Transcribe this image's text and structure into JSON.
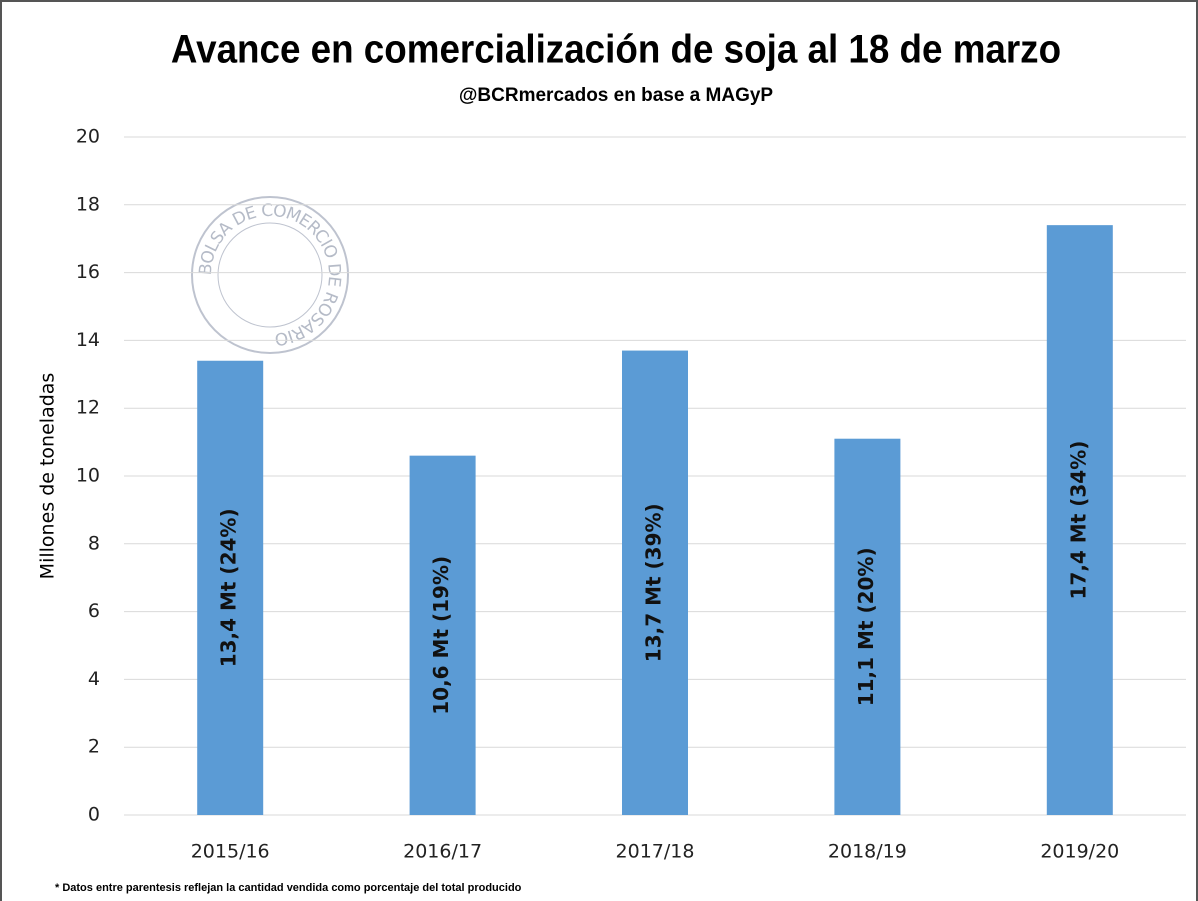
{
  "chart_data": {
    "type": "bar",
    "title": "Avance en comercialización de soja al 18 de marzo",
    "subtitle": "@BCRmercados en base a MAGyP",
    "y_label": "Millones de toneladas",
    "watermark": "BOLSA DE COMERCIO DE ROSARIO",
    "footnote": "* Datos entre parentesis reflejan la cantidad vendida como porcentaje del total producido",
    "categories": [
      "2015/16",
      "2016/17",
      "2017/18",
      "2018/19",
      "2019/20"
    ],
    "values": [
      13.4,
      10.6,
      13.7,
      11.1,
      17.4
    ],
    "value_labels": [
      "13,4 Mt (24%)",
      "10,6 Mt (19%)",
      "13,7 Mt (39%)",
      "11,1 Mt (20%)",
      "17,4  Mt (34%)"
    ],
    "color": "#5b9bd5",
    "ylim": [
      0,
      20
    ],
    "yticks": [
      0,
      2,
      4,
      6,
      8,
      10,
      12,
      14,
      16,
      18,
      20
    ],
    "grid": true
  }
}
